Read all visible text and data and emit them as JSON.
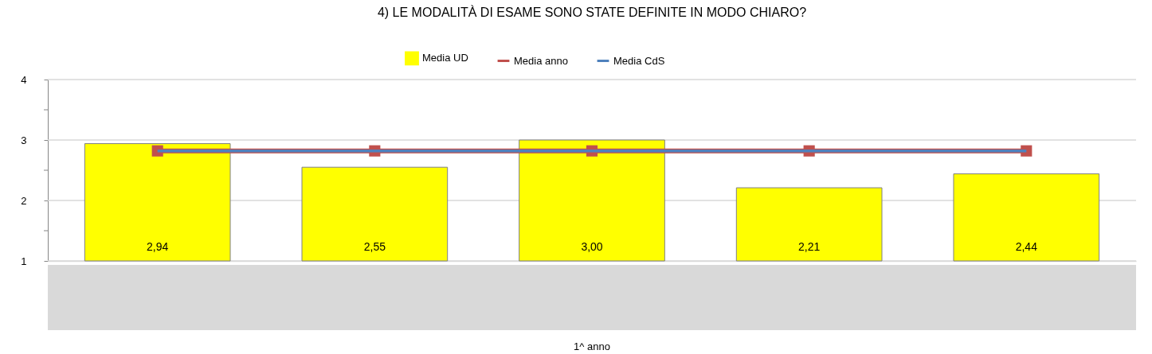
{
  "chart_data": {
    "type": "bar",
    "title": "4) LE MODALITÀ DI ESAME SONO STATE DEFINITE IN MODO CHIARO?",
    "categories": [
      null,
      null,
      null,
      null,
      null
    ],
    "annotations": [
      "1^ anno"
    ],
    "series": [
      {
        "name": "Media UD",
        "type": "bar",
        "color": "#ffff00",
        "values": [
          2.94,
          2.55,
          3.0,
          2.21,
          2.44
        ],
        "value_labels": [
          "2,94",
          "2,55",
          "3,00",
          "2,21",
          "2,44"
        ]
      },
      {
        "name": "Media anno",
        "type": "line",
        "color": "#c0504d",
        "marker": "square",
        "values": [
          2.82,
          2.82,
          2.82,
          2.82,
          2.82
        ]
      },
      {
        "name": "Media CdS",
        "type": "line",
        "color": "#4f81bd",
        "marker": "none",
        "values": [
          2.82,
          2.82,
          2.82,
          2.82,
          2.82
        ]
      }
    ],
    "ylim": [
      1,
      4
    ],
    "yticks": [
      1,
      {
        "value": 1.5,
        "label": null
      },
      2,
      {
        "value": 2.5,
        "label": null
      },
      3,
      {
        "value": 3.5,
        "label": null
      },
      4
    ],
    "grid": "y",
    "legend": "top"
  }
}
